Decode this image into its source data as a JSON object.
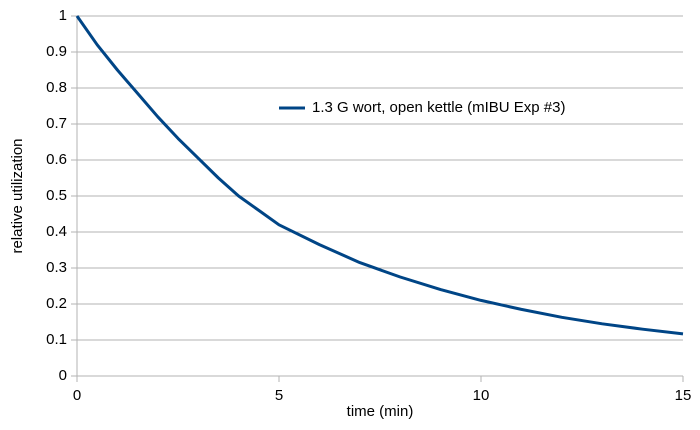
{
  "chart_data": {
    "type": "line",
    "x": [
      0,
      0.5,
      1,
      1.5,
      2,
      2.5,
      3,
      3.5,
      4,
      4.5,
      5,
      6,
      7,
      8,
      9,
      10,
      11,
      12,
      13,
      14,
      15
    ],
    "series": [
      {
        "name": "1.3 G wort, open kettle (mIBU Exp #3)",
        "color": "#004586",
        "values": [
          1,
          0.92,
          0.85,
          0.785,
          0.72,
          0.66,
          0.605,
          0.55,
          0.5,
          0.46,
          0.42,
          0.365,
          0.315,
          0.275,
          0.24,
          0.21,
          0.185,
          0.163,
          0.145,
          0.13,
          0.117
        ]
      }
    ],
    "xlabel": "time (min)",
    "ylabel": "relative utilization",
    "xlim": [
      0,
      15
    ],
    "xticks": [
      0,
      5,
      10,
      15
    ],
    "ylim": [
      0,
      1
    ],
    "yticks": [
      0,
      0.1,
      0.2,
      0.3,
      0.4,
      0.5,
      0.6,
      0.7,
      0.8,
      0.9,
      1
    ],
    "grid": true,
    "legend": "inside right"
  }
}
